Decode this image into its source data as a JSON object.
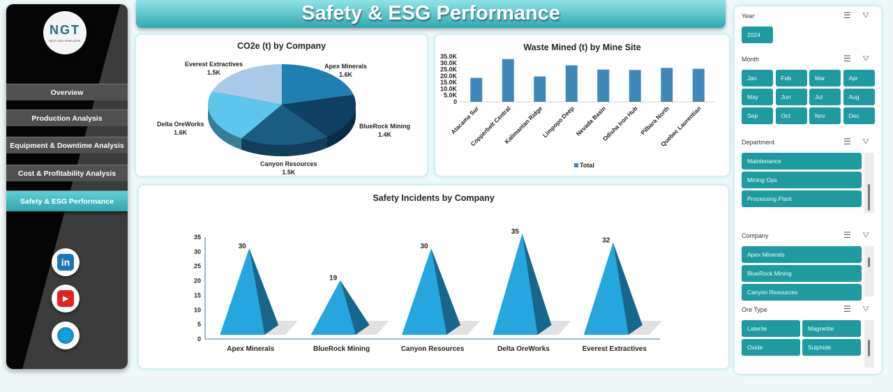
{
  "brand": {
    "logo_text": "NGT",
    "logo_sub": "NEXT GEN TEMPLATES"
  },
  "nav": [
    {
      "label": "Overview"
    },
    {
      "label": "Production Analysis"
    },
    {
      "label": "Equipment & Downtime Analysis"
    },
    {
      "label": "Cost & Profitability Analysis"
    },
    {
      "label": "Safety & ESG Performance",
      "active": true
    }
  ],
  "social": [
    {
      "icon": "linkedin-icon",
      "glyph": "in"
    },
    {
      "icon": "youtube-icon",
      "glyph": "▶"
    },
    {
      "icon": "globe-icon",
      "glyph": "🌐"
    }
  ],
  "title": "Safety & ESG Performance",
  "chart_data": [
    {
      "type": "pie",
      "title": "CO2e (t) by Company",
      "categories": [
        "Apex Minerals",
        "BlueRock Mining",
        "Canyon Resources",
        "Delta OreWorks",
        "Everest Extractives"
      ],
      "values": [
        1600,
        1400,
        1500,
        1600,
        1500
      ],
      "data_labels": [
        "1.6K",
        "1.4K",
        "1.5K",
        "1.6K",
        "1.5K"
      ],
      "colors": [
        "#1f7fb0",
        "#0f3f63",
        "#1d5c82",
        "#5cc6ec",
        "#a8c9e8"
      ]
    },
    {
      "type": "bar",
      "title": "Waste Mined (t) by Mine Site",
      "categories": [
        "Atacama Sur",
        "Copperbelt Central",
        "Kalimantan Ridge",
        "Limpopo Deep",
        "Nevada Basin",
        "Odisha Iron Hub",
        "Pilbara North",
        "Quebec Laurentian"
      ],
      "series": [
        {
          "name": "Total",
          "values": [
            18500,
            33000,
            19600,
            28200,
            24900,
            24600,
            26200,
            25500
          ]
        }
      ],
      "ylim": [
        0,
        35000
      ],
      "yticks": [
        "0",
        "5.0K",
        "10.0K",
        "15.0K",
        "20.0K",
        "25.0K",
        "30.0K",
        "35.0K"
      ],
      "legend": "bottom",
      "color": "#3f88b8"
    },
    {
      "type": "bar",
      "subtype": "3d-pyramid",
      "title": "Safety Incidents  by Company",
      "categories": [
        "Apex Minerals",
        "BlueRock Mining",
        "Canyon Resources",
        "Delta OreWorks",
        "Everest Extractives"
      ],
      "values": [
        30,
        19,
        30,
        35,
        32
      ],
      "ylim": [
        0,
        35
      ],
      "yticks": [
        "0",
        "5",
        "10",
        "15",
        "20",
        "25",
        "30",
        "35"
      ],
      "color": "#23a3dc"
    }
  ],
  "slicers": {
    "year": {
      "label": "Year",
      "items": [
        "2024"
      ]
    },
    "month": {
      "label": "Month",
      "items": [
        "Jan",
        "Feb",
        "Mar",
        "Apr",
        "May",
        "Jun",
        "Jul",
        "Aug",
        "Sep",
        "Oct",
        "Nov",
        "Dec"
      ]
    },
    "department": {
      "label": "Department",
      "items": [
        "Maintenance",
        "Mining Ops",
        "Processing Plant"
      ]
    },
    "company": {
      "label": "Company",
      "items": [
        "Apex Minerals",
        "BlueRock Mining",
        "Canyon Resources"
      ]
    },
    "ore": {
      "label": "Ore Type",
      "items": [
        "Laterite",
        "Magnetite",
        "Oxide",
        "Sulphide"
      ]
    }
  }
}
